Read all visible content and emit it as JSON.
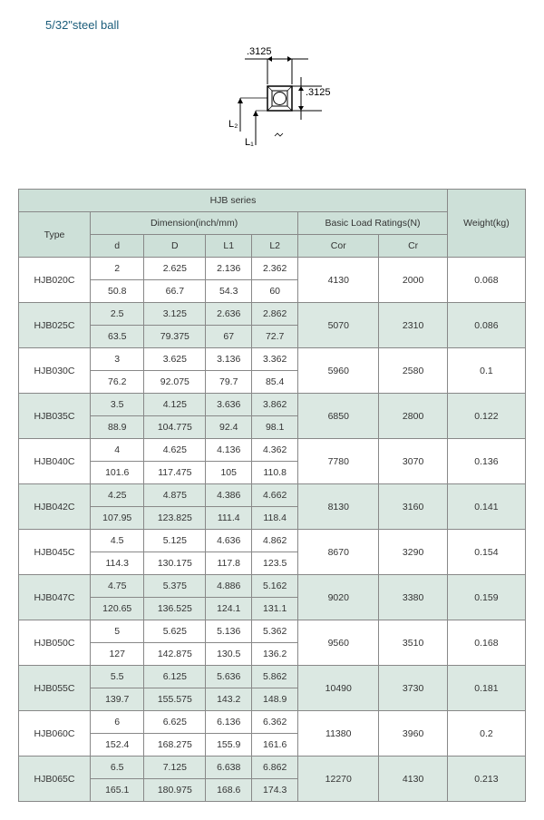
{
  "title": "5/32\"steel ball",
  "diagram": {
    "top_label": ".3125",
    "right_label": ".3125",
    "L1": "L₁",
    "L2": "L₂"
  },
  "table": {
    "series_header": "HJB series",
    "dim_header": "Dimension(inch/mm)",
    "load_header": "Basic Load Ratings(N)",
    "weight_header": "Weight(kg)",
    "type_header": "Type",
    "cols": {
      "d": "d",
      "D": "D",
      "L1": "L1",
      "L2": "L2",
      "Cor": "Cor",
      "Cr": "Cr"
    },
    "rows": [
      {
        "type": "HJB020C",
        "inch": {
          "d": "2",
          "D": "2.625",
          "L1": "2.136",
          "L2": "2.362"
        },
        "mm": {
          "d": "50.8",
          "D": "66.7",
          "L1": "54.3",
          "L2": "60"
        },
        "cor": "4130",
        "cr": "2000",
        "weight": "0.068",
        "alt": false
      },
      {
        "type": "HJB025C",
        "inch": {
          "d": "2.5",
          "D": "3.125",
          "L1": "2.636",
          "L2": "2.862"
        },
        "mm": {
          "d": "63.5",
          "D": "79.375",
          "L1": "67",
          "L2": "72.7"
        },
        "cor": "5070",
        "cr": "2310",
        "weight": "0.086",
        "alt": true
      },
      {
        "type": "HJB030C",
        "inch": {
          "d": "3",
          "D": "3.625",
          "L1": "3.136",
          "L2": "3.362"
        },
        "mm": {
          "d": "76.2",
          "D": "92.075",
          "L1": "79.7",
          "L2": "85.4"
        },
        "cor": "5960",
        "cr": "2580",
        "weight": "0.1",
        "alt": false
      },
      {
        "type": "HJB035C",
        "inch": {
          "d": "3.5",
          "D": "4.125",
          "L1": "3.636",
          "L2": "3.862"
        },
        "mm": {
          "d": "88.9",
          "D": "104.775",
          "L1": "92.4",
          "L2": "98.1"
        },
        "cor": "6850",
        "cr": "2800",
        "weight": "0.122",
        "alt": true
      },
      {
        "type": "HJB040C",
        "inch": {
          "d": "4",
          "D": "4.625",
          "L1": "4.136",
          "L2": "4.362"
        },
        "mm": {
          "d": "101.6",
          "D": "117.475",
          "L1": "105",
          "L2": "110.8"
        },
        "cor": "7780",
        "cr": "3070",
        "weight": "0.136",
        "alt": false
      },
      {
        "type": "HJB042C",
        "inch": {
          "d": "4.25",
          "D": "4.875",
          "L1": "4.386",
          "L2": "4.662"
        },
        "mm": {
          "d": "107.95",
          "D": "123.825",
          "L1": "111.4",
          "L2": "118.4"
        },
        "cor": "8130",
        "cr": "3160",
        "weight": "0.141",
        "alt": true
      },
      {
        "type": "HJB045C",
        "inch": {
          "d": "4.5",
          "D": "5.125",
          "L1": "4.636",
          "L2": "4.862"
        },
        "mm": {
          "d": "114.3",
          "D": "130.175",
          "L1": "117.8",
          "L2": "123.5"
        },
        "cor": "8670",
        "cr": "3290",
        "weight": "0.154",
        "alt": false
      },
      {
        "type": "HJB047C",
        "inch": {
          "d": "4.75",
          "D": "5.375",
          "L1": "4.886",
          "L2": "5.162"
        },
        "mm": {
          "d": "120.65",
          "D": "136.525",
          "L1": "124.1",
          "L2": "131.1"
        },
        "cor": "9020",
        "cr": "3380",
        "weight": "0.159",
        "alt": true
      },
      {
        "type": "HJB050C",
        "inch": {
          "d": "5",
          "D": "5.625",
          "L1": "5.136",
          "L2": "5.362"
        },
        "mm": {
          "d": "127",
          "D": "142.875",
          "L1": "130.5",
          "L2": "136.2"
        },
        "cor": "9560",
        "cr": "3510",
        "weight": "0.168",
        "alt": false
      },
      {
        "type": "HJB055C",
        "inch": {
          "d": "5.5",
          "D": "6.125",
          "L1": "5.636",
          "L2": "5.862"
        },
        "mm": {
          "d": "139.7",
          "D": "155.575",
          "L1": "143.2",
          "L2": "148.9"
        },
        "cor": "10490",
        "cr": "3730",
        "weight": "0.181",
        "alt": true
      },
      {
        "type": "HJB060C",
        "inch": {
          "d": "6",
          "D": "6.625",
          "L1": "6.136",
          "L2": "6.362"
        },
        "mm": {
          "d": "152.4",
          "D": "168.275",
          "L1": "155.9",
          "L2": "161.6"
        },
        "cor": "11380",
        "cr": "3960",
        "weight": "0.2",
        "alt": false
      },
      {
        "type": "HJB065C",
        "inch": {
          "d": "6.5",
          "D": "7.125",
          "L1": "6.638",
          "L2": "6.862"
        },
        "mm": {
          "d": "165.1",
          "D": "180.975",
          "L1": "168.6",
          "L2": "174.3"
        },
        "cor": "12270",
        "cr": "4130",
        "weight": "0.213",
        "alt": true
      }
    ]
  }
}
